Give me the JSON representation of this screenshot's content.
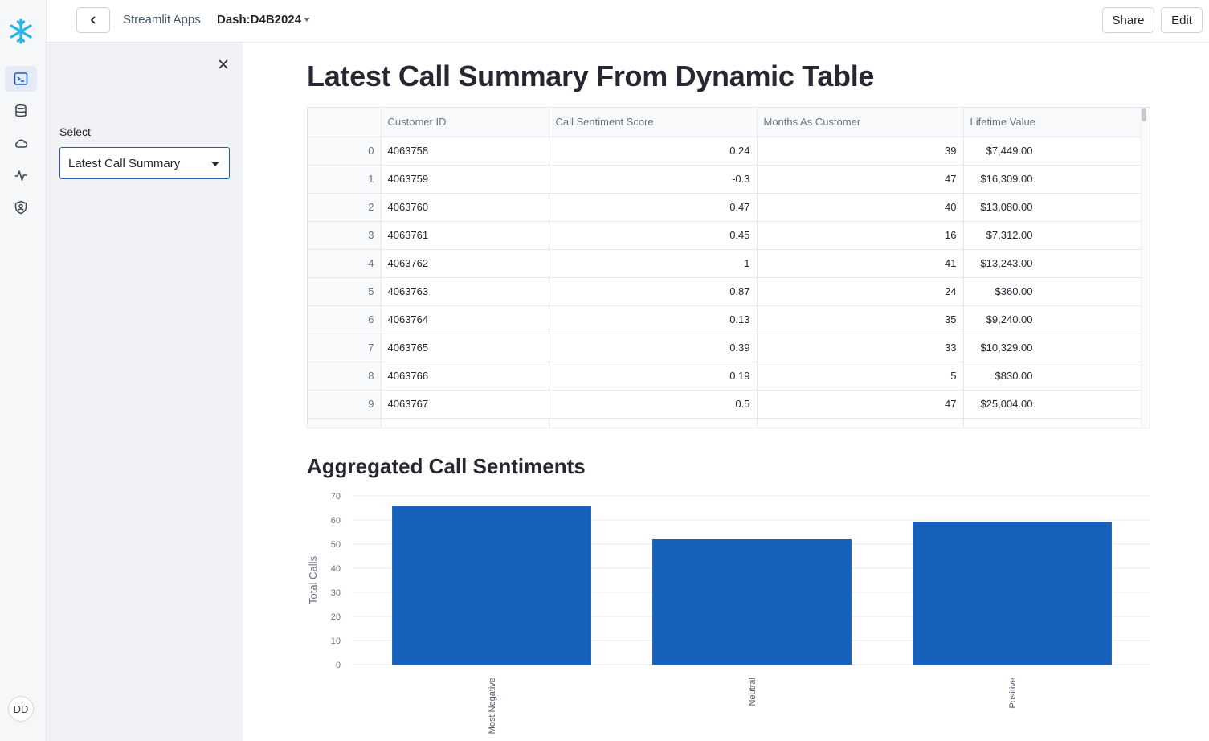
{
  "topbar": {
    "breadcrumb": "Streamlit Apps",
    "app_name": "Dash:D4B2024",
    "share_label": "Share",
    "edit_label": "Edit"
  },
  "rail": {
    "avatar_initials": "DD",
    "icons": [
      "snowflake-logo-icon",
      "worksheet-icon",
      "database-icon",
      "cloud-icon",
      "activity-icon",
      "shield-user-icon"
    ]
  },
  "sidebar": {
    "select_label": "Select",
    "select_value": "Latest Call Summary"
  },
  "main": {
    "title": "Latest Call Summary From Dynamic Table",
    "table": {
      "columns": [
        "",
        "Customer ID",
        "Call Sentiment Score",
        "Months As Customer",
        "Lifetime Value"
      ],
      "rows": [
        [
          "0",
          "4063758",
          "0.24",
          "39",
          "$7,449.00"
        ],
        [
          "1",
          "4063759",
          "-0.3",
          "47",
          "$16,309.00"
        ],
        [
          "2",
          "4063760",
          "0.47",
          "40",
          "$13,080.00"
        ],
        [
          "3",
          "4063761",
          "0.45",
          "16",
          "$7,312.00"
        ],
        [
          "4",
          "4063762",
          "1",
          "41",
          "$13,243.00"
        ],
        [
          "5",
          "4063763",
          "0.87",
          "24",
          "$360.00"
        ],
        [
          "6",
          "4063764",
          "0.13",
          "35",
          "$9,240.00"
        ],
        [
          "7",
          "4063765",
          "0.39",
          "33",
          "$10,329.00"
        ],
        [
          "8",
          "4063766",
          "0.19",
          "5",
          "$830.00"
        ],
        [
          "9",
          "4063767",
          "0.5",
          "47",
          "$25,004.00"
        ]
      ]
    },
    "chart_title": "Aggregated Call Sentiments"
  },
  "chart_data": {
    "type": "bar",
    "title": "Aggregated Call Sentiments",
    "categories": [
      "Most Negative",
      "Neutral",
      "Positive"
    ],
    "values": [
      66,
      52,
      59
    ],
    "xlabel": "",
    "ylabel": "Total Calls",
    "ylim": [
      0,
      70
    ],
    "yticks": [
      0,
      10,
      20,
      30,
      40,
      50,
      60,
      70
    ],
    "grid": true,
    "bar_color": "#1761bd"
  }
}
